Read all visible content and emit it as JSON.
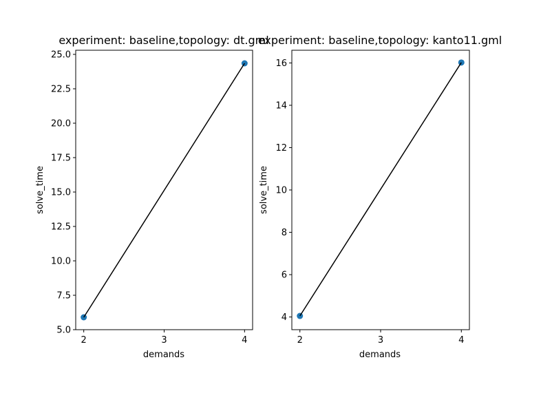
{
  "chart_data": [
    {
      "type": "scatter",
      "title": "experiment: baseline,topology: dt.gml",
      "xlabel": "demands",
      "ylabel": "solve_time",
      "xlim": [
        1.9,
        4.1
      ],
      "ylim": [
        5.0,
        25.3
      ],
      "xticks": [
        2,
        3,
        4
      ],
      "xtick_labels": [
        "2",
        "3",
        "4"
      ],
      "yticks": [
        5.0,
        7.5,
        10.0,
        12.5,
        15.0,
        17.5,
        20.0,
        22.5,
        25.0
      ],
      "ytick_labels": [
        "5.0",
        "7.5",
        "10.0",
        "12.5",
        "15.0",
        "17.5",
        "20.0",
        "22.5",
        "25.0"
      ],
      "series": [
        {
          "x": [
            2,
            4
          ],
          "y": [
            5.9,
            24.35
          ],
          "marker_color": "#1f77b4",
          "line_color": "#000000"
        }
      ],
      "grid": false
    },
    {
      "type": "scatter",
      "title": "experiment: baseline,topology: kanto11.gml",
      "xlabel": "demands",
      "ylabel": "solve_time",
      "xlim": [
        1.9,
        4.1
      ],
      "ylim": [
        3.4,
        16.6
      ],
      "xticks": [
        2,
        3,
        4
      ],
      "xtick_labels": [
        "2",
        "3",
        "4"
      ],
      "yticks": [
        4,
        6,
        8,
        10,
        12,
        14,
        16
      ],
      "ytick_labels": [
        "4",
        "6",
        "8",
        "10",
        "12",
        "14",
        "16"
      ],
      "series": [
        {
          "x": [
            2,
            4
          ],
          "y": [
            4.05,
            16.02
          ],
          "marker_color": "#1f77b4",
          "line_color": "#000000"
        }
      ],
      "grid": false
    }
  ]
}
